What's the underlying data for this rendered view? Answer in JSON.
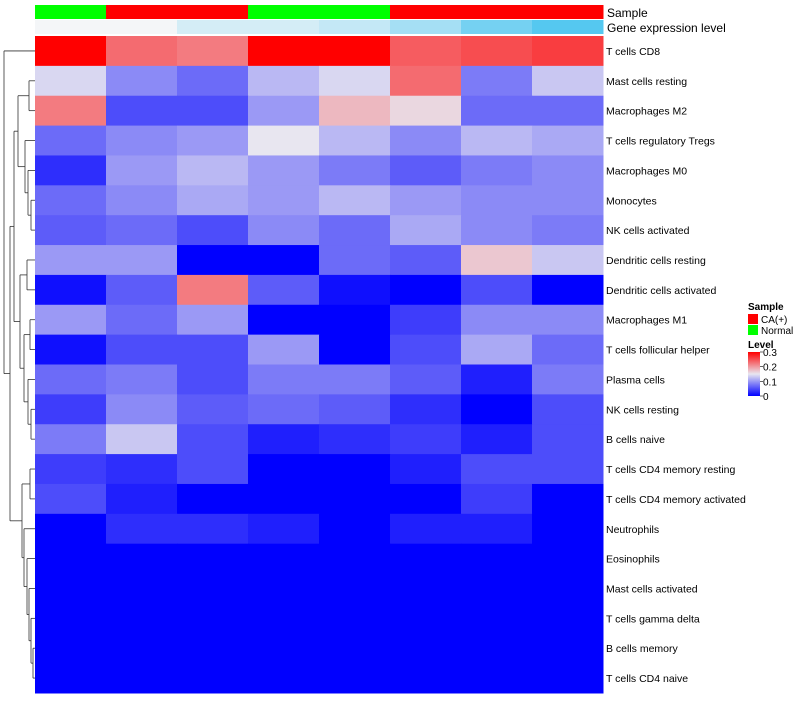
{
  "chart_data": {
    "type": "heatmap",
    "annotations": [
      {
        "label": "Sample",
        "values": [
          "Normal",
          "CA(+)",
          "CA(+)",
          "Normal",
          "Normal",
          "CA(+)",
          "CA(+)",
          "CA(+)"
        ]
      },
      {
        "label": "Gene expression level",
        "values": [
          0.0,
          0.0,
          0.2,
          0.2,
          0.3,
          0.5,
          0.8,
          1.0
        ]
      }
    ],
    "rows": [
      "T cells CD8",
      "Mast cells resting",
      "Macrophages M2",
      "T cells regulatory  Tregs",
      "Macrophages M0",
      "Monocytes",
      "NK cells activated",
      "Dendritic cells resting",
      "Dendritic cells activated",
      "Macrophages M1",
      "T cells follicular helper",
      "Plasma cells",
      "NK cells resting",
      "B cells naive",
      "T cells CD4 memory resting",
      "T cells CD4 memory activated",
      "Neutrophils",
      "Eosinophils",
      "Mast cells activated",
      "T cells gamma delta",
      "B cells memory",
      "T cells CD4 naive"
    ],
    "values": [
      [
        0.3,
        0.23,
        0.22,
        0.3,
        0.3,
        0.24,
        0.25,
        0.26
      ],
      [
        0.14,
        0.09,
        0.07,
        0.12,
        0.14,
        0.23,
        0.08,
        0.13
      ],
      [
        0.22,
        0.05,
        0.05,
        0.1,
        0.18,
        0.16,
        0.07,
        0.07
      ],
      [
        0.07,
        0.09,
        0.1,
        0.15,
        0.12,
        0.09,
        0.12,
        0.11
      ],
      [
        0.03,
        0.1,
        0.12,
        0.1,
        0.08,
        0.06,
        0.08,
        0.09
      ],
      [
        0.07,
        0.09,
        0.11,
        0.1,
        0.12,
        0.1,
        0.09,
        0.09
      ],
      [
        0.06,
        0.07,
        0.05,
        0.09,
        0.07,
        0.11,
        0.09,
        0.08
      ],
      [
        0.1,
        0.1,
        0.0,
        0.0,
        0.07,
        0.06,
        0.17,
        0.13
      ],
      [
        0.01,
        0.06,
        0.22,
        0.06,
        0.01,
        0.0,
        0.05,
        0.0
      ],
      [
        0.1,
        0.07,
        0.1,
        0.0,
        0.0,
        0.04,
        0.09,
        0.09
      ],
      [
        0.01,
        0.05,
        0.05,
        0.1,
        0.0,
        0.05,
        0.11,
        0.07
      ],
      [
        0.07,
        0.08,
        0.05,
        0.08,
        0.08,
        0.06,
        0.02,
        0.08
      ],
      [
        0.04,
        0.09,
        0.06,
        0.07,
        0.06,
        0.03,
        0.0,
        0.05
      ],
      [
        0.08,
        0.13,
        0.05,
        0.02,
        0.03,
        0.04,
        0.02,
        0.05
      ],
      [
        0.04,
        0.03,
        0.05,
        0.0,
        0.0,
        0.02,
        0.05,
        0.05
      ],
      [
        0.05,
        0.02,
        0.0,
        0.0,
        0.0,
        0.0,
        0.04,
        0.0
      ],
      [
        0.0,
        0.03,
        0.03,
        0.02,
        0.0,
        0.02,
        0.02,
        0.0
      ],
      [
        0.0,
        0.0,
        0.0,
        0.0,
        0.0,
        0.0,
        0.0,
        0.0
      ],
      [
        0.0,
        0.0,
        0.0,
        0.0,
        0.0,
        0.0,
        0.0,
        0.0
      ],
      [
        0.0,
        0.0,
        0.0,
        0.0,
        0.0,
        0.0,
        0.0,
        0.0
      ],
      [
        0.0,
        0.0,
        0.0,
        0.0,
        0.0,
        0.0,
        0.0,
        0.0
      ],
      [
        0.0,
        0.0,
        0.0,
        0.0,
        0.0,
        0.0,
        0.0,
        0.0
      ]
    ],
    "color_range": [
      0,
      0.3
    ],
    "colors": {
      "low": "#0000ff",
      "mid": "#e8e6f0",
      "high": "#ff0000"
    },
    "legend": {
      "sample": {
        "title": "Sample",
        "items": [
          {
            "label": "CA(+)",
            "color": "#ff0000"
          },
          {
            "label": "Normal",
            "color": "#00ff00"
          }
        ]
      },
      "level": {
        "title": "Level",
        "ticks": [
          "0.3",
          "0.2",
          "0.1",
          "0"
        ]
      },
      "placement": "right"
    },
    "annotation_colors": {
      "expression_low": "#f4f6f8",
      "expression_high": "#55c8f0"
    },
    "dendrogram": "rows"
  }
}
